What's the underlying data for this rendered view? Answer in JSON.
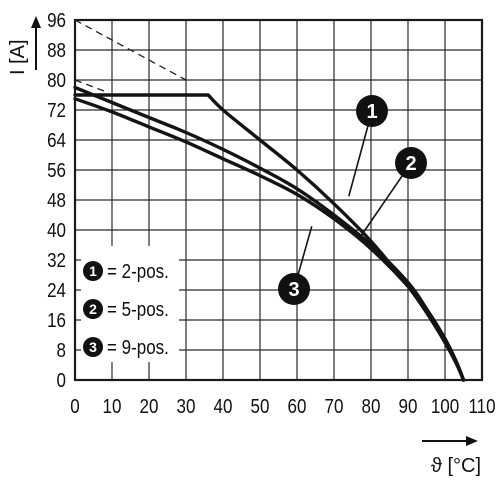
{
  "chart_data": {
    "type": "line",
    "xlabel": "ϑ [°C]",
    "ylabel": "I [A]",
    "xlim": [
      0,
      110
    ],
    "ylim": [
      0,
      96
    ],
    "x_ticks": [
      "0",
      "10",
      "20",
      "30",
      "40",
      "50",
      "60",
      "70",
      "80",
      "90",
      "100",
      "110"
    ],
    "y_ticks": [
      "0",
      "8",
      "16",
      "24",
      "32",
      "40",
      "48",
      "56",
      "64",
      "72",
      "80",
      "88",
      "96"
    ],
    "grid": true,
    "series": [
      {
        "name": "2-pos.",
        "marker": "1",
        "x": [
          0,
          36,
          40,
          50,
          60,
          70,
          80,
          90,
          95,
          100,
          103,
          105
        ],
        "y": [
          76,
          76,
          72,
          64,
          56,
          47,
          37,
          25,
          18,
          10,
          4.5,
          0
        ]
      },
      {
        "name": "5-pos.",
        "marker": "2",
        "x": [
          0,
          10,
          20,
          30,
          40,
          50,
          60,
          70,
          80,
          90,
          95,
          100,
          103,
          105
        ],
        "y": [
          78,
          74,
          70,
          66,
          61.5,
          56.5,
          51,
          44,
          36,
          26,
          19,
          11,
          5,
          0
        ]
      },
      {
        "name": "9-pos.",
        "marker": "3",
        "x": [
          0,
          10,
          20,
          30,
          40,
          50,
          60,
          70,
          80,
          90,
          95,
          100,
          103,
          105
        ],
        "y": [
          75,
          71.5,
          67.5,
          63.5,
          59,
          54.5,
          49.5,
          43,
          35,
          25,
          18.5,
          11,
          5,
          0
        ]
      }
    ],
    "reference_lines": [
      {
        "style": "dashed",
        "x": [
          0,
          30
        ],
        "y": [
          96,
          80
        ]
      },
      {
        "style": "dashed",
        "x": [
          0,
          8
        ],
        "y": [
          80,
          77
        ]
      }
    ],
    "legend": {
      "placement": "bottom-left",
      "entries": [
        {
          "marker": "1",
          "text": "= 2-pos."
        },
        {
          "marker": "2",
          "text": "= 5-pos."
        },
        {
          "marker": "3",
          "text": "= 9-pos."
        }
      ]
    },
    "annotations": [
      {
        "marker": "1",
        "target_series": 0,
        "anchor_x": 74,
        "anchor_y": 49
      },
      {
        "marker": "2",
        "target_series": 1,
        "anchor_x": 77,
        "anchor_y": 38
      },
      {
        "marker": "3",
        "target_series": 2,
        "anchor_x": 64,
        "anchor_y": 41
      }
    ],
    "colors": {
      "line": "#141414",
      "grid": "#2a2a2a",
      "marker_fill": "#111111",
      "marker_text": "#ffffff"
    }
  }
}
